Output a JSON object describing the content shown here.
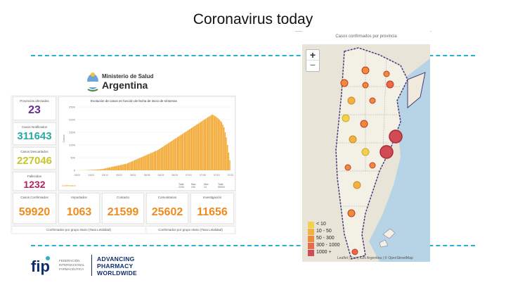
{
  "slide": {
    "title": "Coronavirus today"
  },
  "dashboard": {
    "ministry": "Ministerio de Salud",
    "country": "Argentina",
    "kpis": [
      {
        "label": "Provincias afectadas",
        "value": "23",
        "color": "#6b2c91"
      },
      {
        "label": "Casos Notificados",
        "value": "311643",
        "color": "#2aa8a0"
      },
      {
        "label": "Casos Descartados",
        "value": "227046",
        "color": "#c8c42a"
      },
      {
        "label": "Fallecidos",
        "value": "1232",
        "color": "#b5245f"
      }
    ],
    "chart": {
      "title": "Evolución de casos en función de fecha de inicio de síntomas",
      "legend": "Confirmados",
      "footer": {
        "headers": [
          "Total",
          "Max",
          "Max",
          "Total"
        ],
        "values": [
          "2230",
          "230",
          "10",
          "59920"
        ]
      }
    },
    "stats": [
      {
        "label": "Casos Confirmados",
        "value": "59920"
      },
      {
        "label": "Importados",
        "value": "1063"
      },
      {
        "label": "Contacto",
        "value": "21599"
      },
      {
        "label": "Comunitarios",
        "value": "25602"
      },
      {
        "label": "Investigación",
        "value": "11656"
      }
    ],
    "bottom": [
      "Confirmados por grupo etario (Tasa Letalidad)",
      "Confirmados por grupo etario (Tasa Letalidad)"
    ],
    "accent": "#f08a1c"
  },
  "chart_data": {
    "type": "bar",
    "title": "Evolución de casos en función de fecha de inicio de síntomas",
    "ylabel": "Casos",
    "ylim": [
      0,
      2500
    ],
    "yticks": [
      "2500",
      "2000",
      "1500",
      "1000",
      "500",
      "0"
    ],
    "xticks": [
      "03/01",
      "04/02",
      "05/14",
      "05/22",
      "06/01",
      "06/08",
      "06/15",
      "06/24",
      "07/01",
      "07/08",
      "07/15",
      "07/22"
    ],
    "series": [
      {
        "name": "Confirmados",
        "values": [
          2,
          2,
          3,
          3,
          4,
          5,
          6,
          8,
          10,
          12,
          14,
          16,
          18,
          20,
          22,
          25,
          28,
          30,
          35,
          40,
          45,
          50,
          60,
          70,
          80,
          90,
          100,
          110,
          120,
          130,
          140,
          150,
          160,
          170,
          180,
          190,
          200,
          210,
          220,
          230,
          240,
          250,
          260,
          280,
          300,
          320,
          340,
          360,
          380,
          400,
          420,
          440,
          460,
          480,
          500,
          520,
          540,
          560,
          580,
          600,
          620,
          640,
          660,
          680,
          700,
          720,
          740,
          760,
          780,
          800,
          830,
          860,
          890,
          920,
          950,
          980,
          1010,
          1040,
          1070,
          1100,
          1130,
          1160,
          1190,
          1220,
          1250,
          1280,
          1310,
          1340,
          1370,
          1400,
          1430,
          1460,
          1490,
          1520,
          1550,
          1580,
          1610,
          1640,
          1670,
          1700,
          1730,
          1760,
          1790,
          1820,
          1850,
          1880,
          1910,
          1940,
          1970,
          2000,
          2030,
          2060,
          2090,
          2120,
          2150,
          2180,
          2200,
          2180,
          2150,
          2120,
          2080,
          2050,
          2000,
          1950,
          1900,
          1800,
          1700,
          1500,
          1300,
          1000,
          700,
          400
        ]
      }
    ]
  },
  "map": {
    "title": "Casos confirmados por provincia",
    "zoom_in": "+",
    "zoom_out": "−",
    "attribution": "Leaflet | Esri | IGN Argentina | © OpenStreetMap",
    "legend": [
      {
        "label": "< 10",
        "color": "#f2d24a"
      },
      {
        "label": "10 - 50",
        "color": "#f2b23e"
      },
      {
        "label": "50 - 300",
        "color": "#ee8a3a"
      },
      {
        "label": "300 - 1000",
        "color": "#e86a47"
      },
      {
        "label": "1000 +",
        "color": "#d04b54"
      }
    ]
  },
  "footer": {
    "logo": "fip",
    "subtitle": "FEDERACIÓN INTERNACIONAL FARMACÉUTICA",
    "tagline": [
      "ADVANCING",
      "PHARMACY",
      "WORLDWIDE"
    ]
  }
}
